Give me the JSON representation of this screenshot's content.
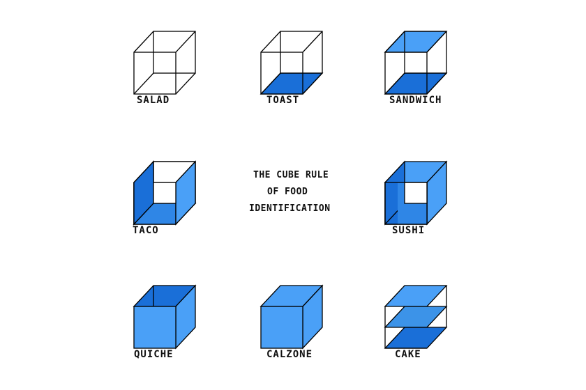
{
  "title": {
    "line1": "THE CUBE RULE",
    "line2": "OF FOOD",
    "line3": "IDENTIFICATION"
  },
  "colors": {
    "outline": "#000000",
    "dark": "#1a6fd8",
    "medium": "#2f86e6",
    "light": "#4aa0f7",
    "sandwich_mid": "#3c93e8"
  },
  "cubes": [
    {
      "id": "salad",
      "label": "SALAD",
      "filled_faces": []
    },
    {
      "id": "toast",
      "label": "TOAST",
      "filled_faces": [
        "bottom"
      ]
    },
    {
      "id": "sandwich",
      "label": "SANDWICH",
      "filled_faces": [
        "top",
        "bottom"
      ]
    },
    {
      "id": "taco",
      "label": "TACO",
      "filled_faces": [
        "left",
        "right",
        "bottom"
      ]
    },
    {
      "id": "sushi",
      "label": "SUSHI",
      "filled_faces": [
        "top",
        "left",
        "right",
        "bottom"
      ]
    },
    {
      "id": "quiche",
      "label": "QUICHE",
      "filled_faces": [
        "front",
        "left",
        "right",
        "bottom",
        "back"
      ]
    },
    {
      "id": "calzone",
      "label": "CALZONE",
      "filled_faces": [
        "front",
        "top",
        "left",
        "right",
        "bottom",
        "back"
      ]
    },
    {
      "id": "cake",
      "label": "CAKE",
      "filled_faces": [
        "top",
        "middle",
        "bottom"
      ]
    }
  ]
}
